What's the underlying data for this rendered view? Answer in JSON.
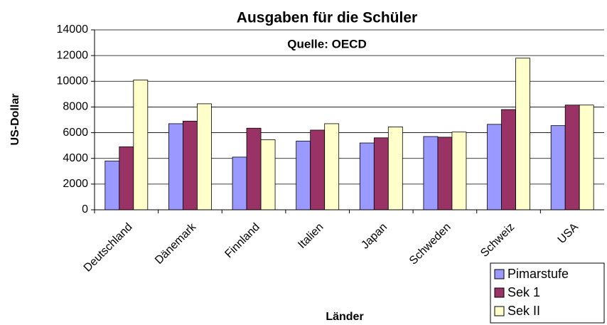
{
  "chart_data": {
    "type": "bar",
    "title": "Ausgaben für die Schüler",
    "subtitle": "Quelle: OECD",
    "x_label": "Länder",
    "y_label": "US-Dollar",
    "categories": [
      "Deutschland",
      "Dänemark",
      "Finnland",
      "Italien",
      "Japan",
      "Schweden",
      "Schweiz",
      "USA"
    ],
    "series": [
      {
        "name": "Pimarstufe",
        "color": "#9999ff",
        "values": [
          3800,
          6700,
          4100,
          5350,
          5200,
          5700,
          6650,
          6550
        ]
      },
      {
        "name": "Sek 1",
        "color": "#993366",
        "values": [
          4900,
          6900,
          6350,
          6200,
          5600,
          5650,
          7800,
          8150
        ]
      },
      {
        "name": "Sek II",
        "color": "#ffffcc",
        "values": [
          10100,
          8250,
          5450,
          6700,
          6450,
          6050,
          11800,
          8150
        ]
      }
    ],
    "ylim": [
      0,
      14000
    ],
    "yticks": [
      0,
      2000,
      4000,
      6000,
      8000,
      10000,
      12000,
      14000
    ],
    "grid": true,
    "legend": "bottom-right"
  }
}
